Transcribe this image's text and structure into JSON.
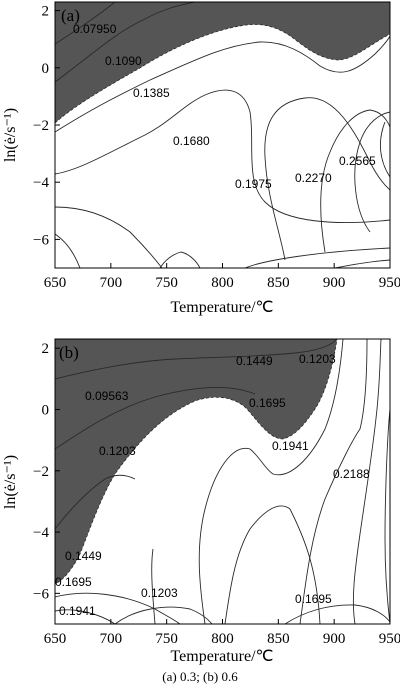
{
  "caption": "(a) 0.3; (b) 0.6",
  "colors": {
    "shade": "#555555",
    "line": "#2a2a2a",
    "axis": "#000000"
  },
  "chart_data": [
    {
      "type": "contour",
      "panel_label": "(a)",
      "xlabel": "Temperature/℃",
      "ylabel": "ln(ė/s⁻¹)",
      "xlim": [
        650,
        950
      ],
      "ylim": [
        -7,
        2.3
      ],
      "xticks": [
        "650",
        "700",
        "750",
        "800",
        "850",
        "900",
        "950"
      ],
      "yticks": [
        "2",
        "0",
        "−2",
        "−4",
        "−6"
      ],
      "grid": false,
      "shaded_region": "instability domain, upper-left",
      "contours": [
        {
          "label": "0.07950",
          "at": [
            667,
            1.55
          ]
        },
        {
          "label": "0.1090",
          "at": [
            713,
            0.32
          ]
        },
        {
          "label": "0.1385",
          "at": [
            737,
            -0.8
          ]
        },
        {
          "label": "0.1680",
          "at": [
            790,
            -2.3
          ]
        },
        {
          "label": "0.1975",
          "at": [
            848,
            -3.85
          ]
        },
        {
          "label": "0.2270",
          "at": [
            897,
            -3.55
          ]
        },
        {
          "label": "0.2565",
          "at": [
            931,
            -2.95
          ]
        }
      ]
    },
    {
      "type": "contour",
      "panel_label": "(b)",
      "xlabel": "Temperature/℃",
      "ylabel": "ln(ė/s⁻¹)",
      "xlim": [
        650,
        950
      ],
      "ylim": [
        -7,
        2.3
      ],
      "xticks": [
        "650",
        "700",
        "750",
        "800",
        "850",
        "900",
        "950"
      ],
      "yticks": [
        "2",
        "0",
        "−2",
        "−4",
        "−6"
      ],
      "grid": false,
      "shaded_region": "instability domain, upper",
      "contours": [
        {
          "label": "0.09563",
          "at": [
            682,
            0.45
          ]
        },
        {
          "label": "0.1449",
          "at": [
            846,
            1.45
          ]
        },
        {
          "label": "0.1203",
          "at": [
            899,
            1.5
          ]
        },
        {
          "label": "0.1695",
          "at": [
            855,
            0.52
          ]
        },
        {
          "label": "0.1203",
          "at": [
            705,
            -1.45
          ]
        },
        {
          "label": "0.1941",
          "at": [
            875,
            -1.2
          ]
        },
        {
          "label": "0.2188",
          "at": [
            929,
            -2.3
          ]
        },
        {
          "label": "0.1449",
          "at": [
            667,
            -5.45
          ]
        },
        {
          "label": "0.1695",
          "at": [
            665,
            -6.35
          ]
        },
        {
          "label": "0.1941",
          "at": [
            672,
            -6.9
          ]
        },
        {
          "label": "0.1203",
          "at": [
            761,
            -6.5
          ]
        },
        {
          "label": "0.1695",
          "at": [
            897,
            -6.65
          ]
        }
      ]
    }
  ]
}
